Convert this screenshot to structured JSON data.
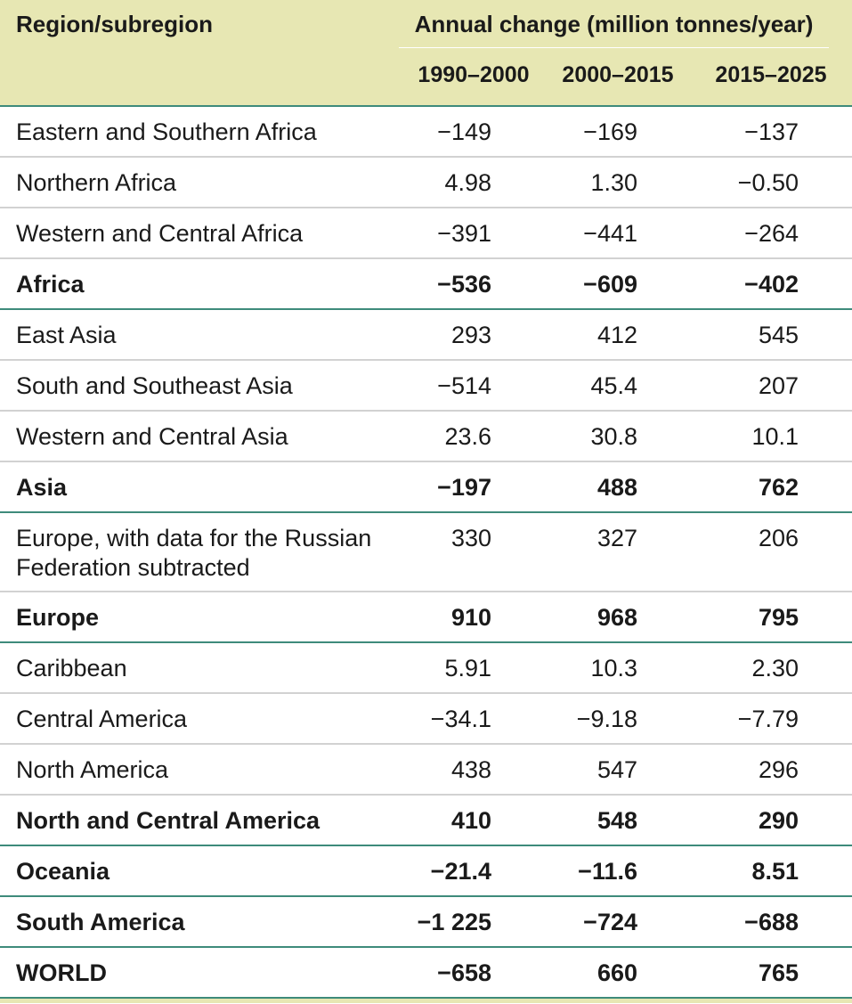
{
  "header": {
    "region_label": "Region/subregion",
    "annual_label": "Annual change (million tonnes/year)",
    "periods": [
      "1990–2000",
      "2000–2015",
      "2015–2025"
    ]
  },
  "rows": [
    {
      "name": "Eastern and Southern Africa",
      "v": [
        "−149",
        "−169",
        "−137"
      ]
    },
    {
      "name": "Northern Africa",
      "v": [
        "4.98",
        "1.30",
        "−0.50"
      ]
    },
    {
      "name": "Western and Central Africa",
      "v": [
        "−391",
        "−441",
        "−264"
      ]
    },
    {
      "name": "Africa",
      "v": [
        "−536",
        "−609",
        "−402"
      ]
    },
    {
      "name": "East Asia",
      "v": [
        "293",
        "412",
        "545"
      ]
    },
    {
      "name": "South and Southeast Asia",
      "v": [
        "−514",
        "45.4",
        "207"
      ]
    },
    {
      "name": "Western and Central Asia",
      "v": [
        "23.6",
        "30.8",
        "10.1"
      ]
    },
    {
      "name": "Asia",
      "v": [
        "−197",
        "488",
        "762"
      ]
    },
    {
      "name": "Europe, with data for the Russian Federation subtracted",
      "v": [
        "330",
        "327",
        "206"
      ]
    },
    {
      "name": "Europe",
      "v": [
        "910",
        "968",
        "795"
      ]
    },
    {
      "name": "Caribbean",
      "v": [
        "5.91",
        "10.3",
        "2.30"
      ]
    },
    {
      "name": "Central America",
      "v": [
        "−34.1",
        "−9.18",
        "−7.79"
      ]
    },
    {
      "name": "North America",
      "v": [
        "438",
        "547",
        "296"
      ]
    },
    {
      "name": "North and Central America",
      "v": [
        "410",
        "548",
        "290"
      ]
    },
    {
      "name": "Oceania",
      "v": [
        "−21.4",
        "−11.6",
        "8.51"
      ]
    },
    {
      "name": "South America",
      "v": [
        "−1 225",
        "−724",
        "−688"
      ]
    },
    {
      "name": "WORLD",
      "v": [
        "−658",
        "660",
        "765"
      ]
    }
  ]
}
